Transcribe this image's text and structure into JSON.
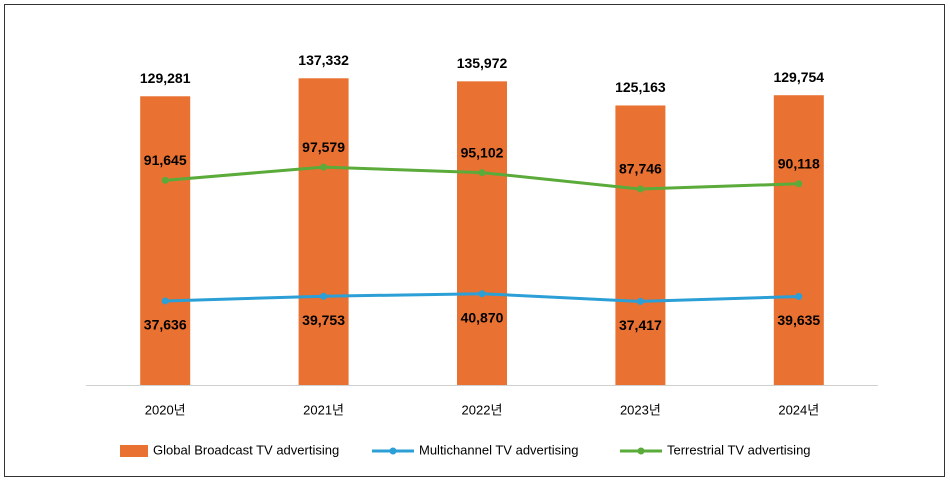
{
  "chart_data": {
    "type": "combo",
    "categories": [
      "2020년",
      "2021년",
      "2022년",
      "2023년",
      "2024년"
    ],
    "series": [
      {
        "name": "Global Broadcast TV advertising",
        "type": "bar",
        "color": "#e97132",
        "values": [
          129281,
          137332,
          135972,
          125163,
          129754
        ],
        "value_labels": [
          "129,281",
          "137,332",
          "135,972",
          "125,163",
          "129,754"
        ]
      },
      {
        "name": "Multichannel TV advertising",
        "type": "line",
        "color": "#2b9fd6",
        "label_position": "below",
        "values": [
          37636,
          39753,
          40870,
          37417,
          39635
        ],
        "value_labels": [
          "37,636",
          "39,753",
          "40,870",
          "37,417",
          "39,635"
        ]
      },
      {
        "name": "Terrestrial TV advertising",
        "type": "line",
        "color": "#5aab3a",
        "label_position": "above",
        "values": [
          91645,
          97579,
          95102,
          87746,
          90118
        ],
        "value_labels": [
          "91,645",
          "97,579",
          "95,102",
          "87,746",
          "90,118"
        ]
      }
    ],
    "ylim": [
      0,
      150000
    ],
    "legend": "bottom"
  }
}
